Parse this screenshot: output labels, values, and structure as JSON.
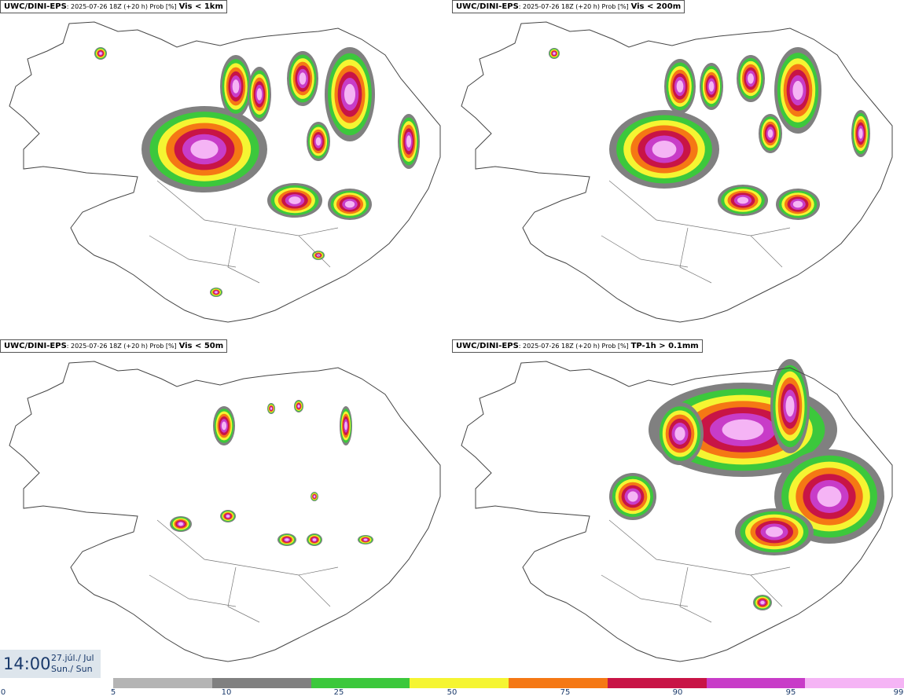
{
  "panels": [
    {
      "model": "UWC/DINI-EPS",
      "meta": ": 2025-07-26 18Z (+20 h) Prob [%]",
      "field": "Vis < 1km"
    },
    {
      "model": "UWC/DINI-EPS",
      "meta": ": 2025-07-26 18Z (+20 h) Prob [%]",
      "field": "Vis < 200m"
    },
    {
      "model": "UWC/DINI-EPS",
      "meta": ": 2025-07-26 18Z (+20 h) Prob [%]",
      "field": "Vis < 50m"
    },
    {
      "model": "UWC/DINI-EPS",
      "meta": ": 2025-07-26 18Z (+20 h) Prob [%]",
      "field": "TP-1h > 0.1mm"
    }
  ],
  "valid_time": {
    "clock": "14:00",
    "date": "27.júl./ Jul",
    "day": "Sun./ Sun"
  },
  "legend": {
    "labels": [
      "0",
      "5",
      "10",
      "25",
      "50",
      "75",
      "90",
      "95",
      "99"
    ],
    "colors": [
      "#b4b4b4",
      "#808080",
      "#3cc83c",
      "#f5f532",
      "#f57814",
      "#c81446",
      "#c83cc8",
      "#f5b4f5"
    ]
  }
}
